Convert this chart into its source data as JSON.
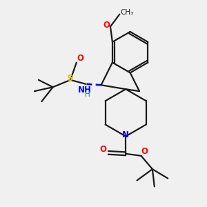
{
  "bg_color": "#f0f0f0",
  "bond_color": "#1a1a1a",
  "N_color": "#0000ff",
  "O_color": "#ff0000",
  "S_color": "#cccc00",
  "H_color": "#008080",
  "line_width": 1.6,
  "fig_size": [
    3.0,
    3.0
  ],
  "dpi": 100,
  "xlim": [
    0,
    10
  ],
  "ylim": [
    0,
    10
  ]
}
